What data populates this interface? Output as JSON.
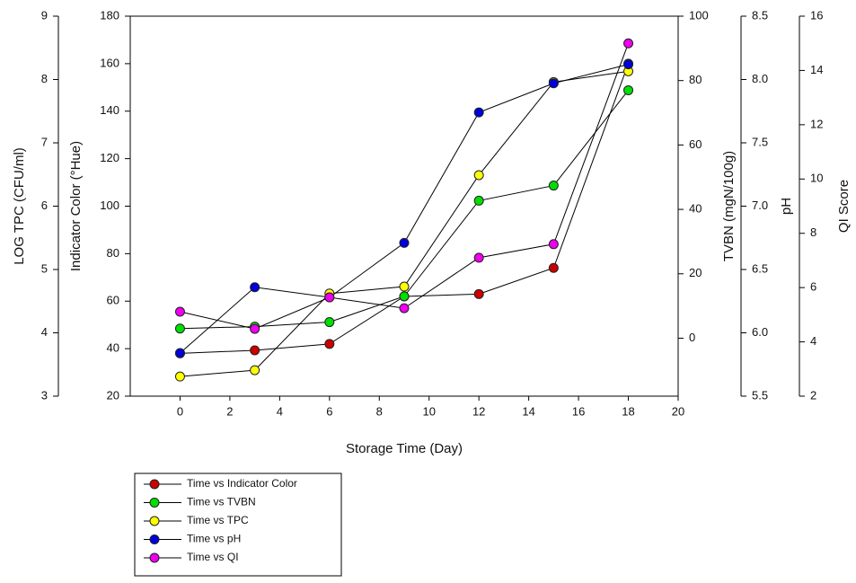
{
  "chart_data": {
    "type": "line",
    "xlabel": "Storage Time (Day)",
    "x": [
      0,
      3,
      6,
      9,
      12,
      15,
      18
    ],
    "xlim": [
      -2,
      20
    ],
    "xticks": [
      0,
      2,
      4,
      6,
      8,
      10,
      12,
      14,
      16,
      18,
      20
    ],
    "axes": [
      {
        "label": "LOG TPC (CFU/ml)",
        "lim": [
          3,
          9
        ],
        "ticks": [
          3,
          4,
          5,
          6,
          7,
          8,
          9
        ]
      },
      {
        "label": "Indicator Color (°Hue)",
        "lim": [
          20,
          180
        ],
        "ticks": [
          20,
          40,
          60,
          80,
          100,
          120,
          140,
          160,
          180
        ]
      },
      {
        "label": "TVBN (mgN/100g)",
        "lim": [
          -18,
          100
        ],
        "ticks": [
          0,
          20,
          40,
          60,
          80,
          100
        ]
      },
      {
        "label": "pH",
        "lim": [
          5.5,
          8.5
        ],
        "ticks": [
          5.5,
          {
            "value": 6,
            "label": "6.0"
          },
          6.5,
          {
            "value": 7,
            "label": "7.0"
          },
          7.5,
          {
            "value": 8,
            "label": "8.0"
          },
          8.5
        ]
      },
      {
        "label": "QI Score",
        "lim": [
          2,
          16
        ],
        "ticks": [
          2,
          4,
          6,
          8,
          10,
          12,
          14,
          16
        ]
      }
    ],
    "series": [
      {
        "name": "Time vs Indicator Color",
        "color": "#cc0000",
        "axis": 1,
        "values": [
          38,
          39.3,
          42,
          62,
          63,
          74,
          160
        ]
      },
      {
        "name": "Time vs TVBN",
        "color": "#00e000",
        "axis": 2,
        "values": [
          3,
          3.6,
          5,
          13,
          42.7,
          47.4,
          77
        ]
      },
      {
        "name": "Time vs TPC",
        "color": "#ffff00",
        "axis": 0,
        "values": [
          3.31,
          3.41,
          4.62,
          4.73,
          6.49,
          7.96,
          8.13
        ]
      },
      {
        "name": "Time vs pH",
        "color": "#0000dd",
        "axis": 3,
        "values": [
          5.84,
          6.36,
          6.28,
          6.71,
          7.74,
          7.97,
          8.12
        ]
      },
      {
        "name": "Time vs QI",
        "color": "#ee00ee",
        "axis": 4,
        "values": [
          5.11,
          4.48,
          5.64,
          5.24,
          7.1,
          7.6,
          15
        ]
      }
    ]
  }
}
